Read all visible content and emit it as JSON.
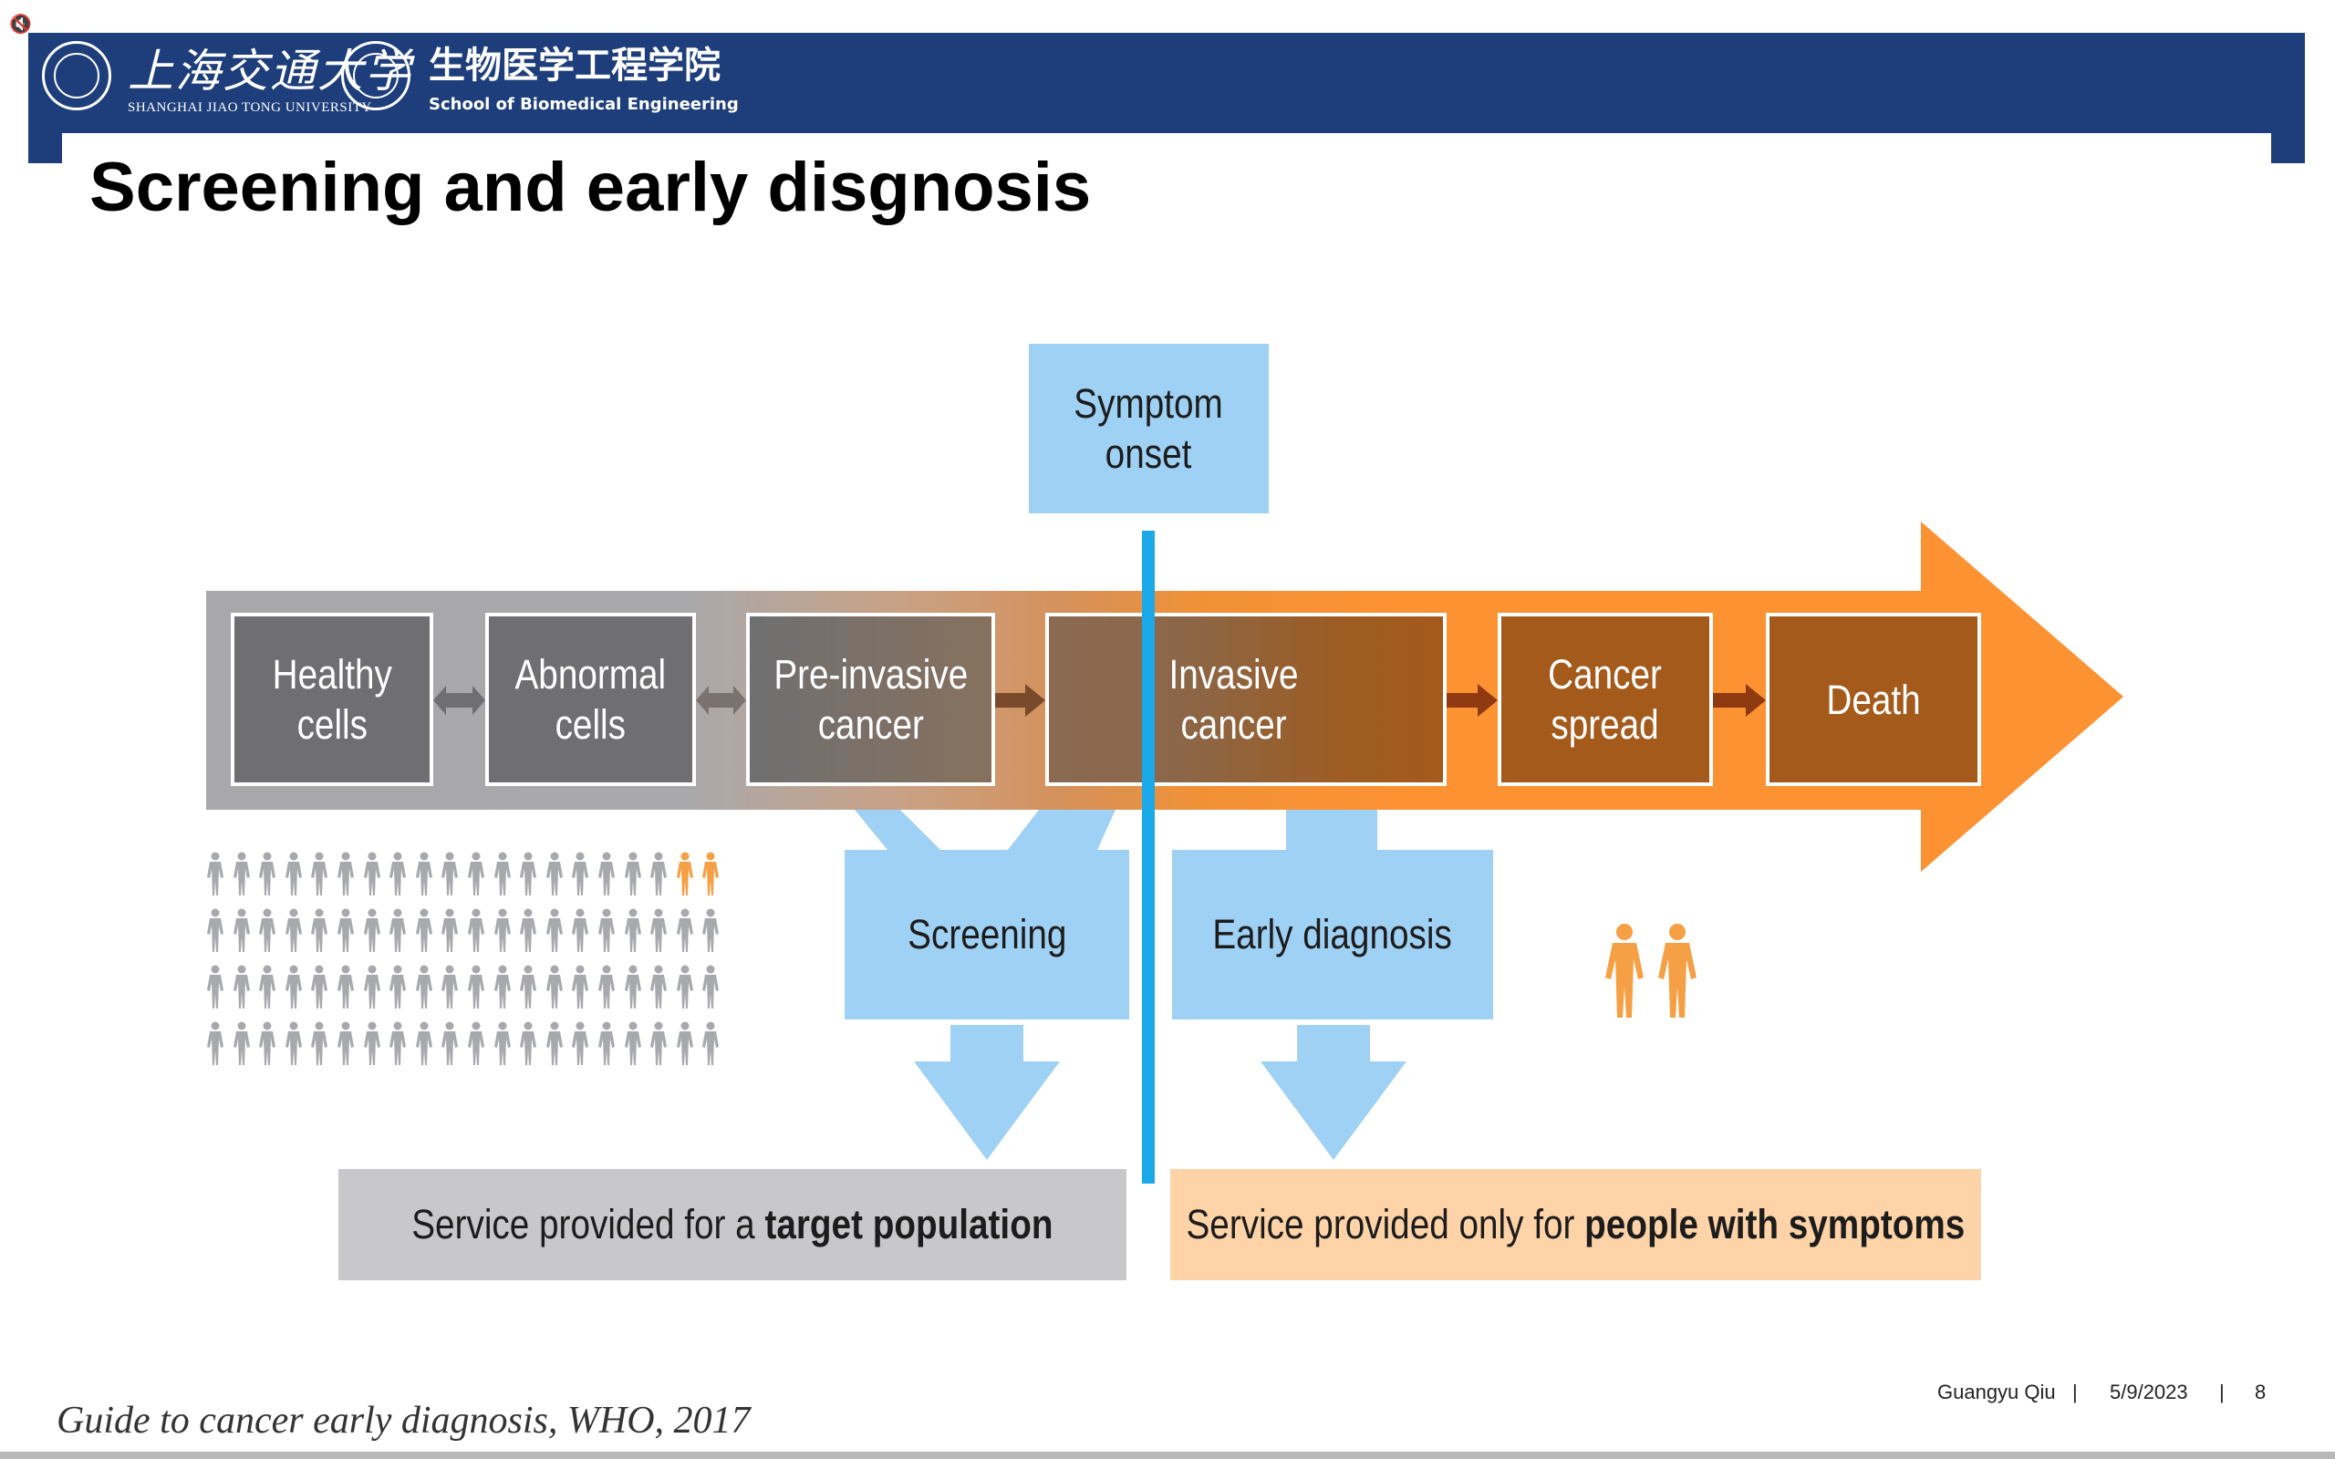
{
  "header": {
    "university_cn": "上海交通大学",
    "university_en": "SHANGHAI JIAO TONG UNIVERSITY",
    "school_cn": "生物医学工程学院",
    "school_en": "School of Biomedical Engineering",
    "brand_color": "#1e3e7b",
    "icons": [
      "sjtu-seal-icon",
      "bme-seal-icon",
      "mute-speaker-icon"
    ]
  },
  "slide": {
    "title": "Screening and early disgnosis"
  },
  "diagram": {
    "symptom_onset": "Symptom\nonset",
    "stages": [
      "Healthy\ncells",
      "Abnormal\ncells",
      "Pre-invasive\ncancer",
      "",
      "Invasive\ncancer",
      "Cancer\nspread",
      "Death"
    ],
    "screening_label": "Screening",
    "early_diagnosis_label": "Early diagnosis",
    "service_left_prefix": "Service provided for a ",
    "service_left_bold": "target population",
    "service_right_prefix": "Service provided only for ",
    "service_right_bold": "people with symptoms",
    "colors": {
      "light_blue": "#9fd1f5",
      "divider_blue": "#1ba9e8",
      "orange": "#fd9233",
      "brown": "#a45a1a",
      "gray": "#6f6f71",
      "person_gray": "#a7a9ac",
      "person_orange": "#f5a044"
    }
  },
  "footer": {
    "author": "Guangyu Qiu",
    "separator": "|",
    "date": "5/9/2023",
    "page": "8",
    "citation": "Guide to cancer early diagnosis, WHO, 2017"
  }
}
